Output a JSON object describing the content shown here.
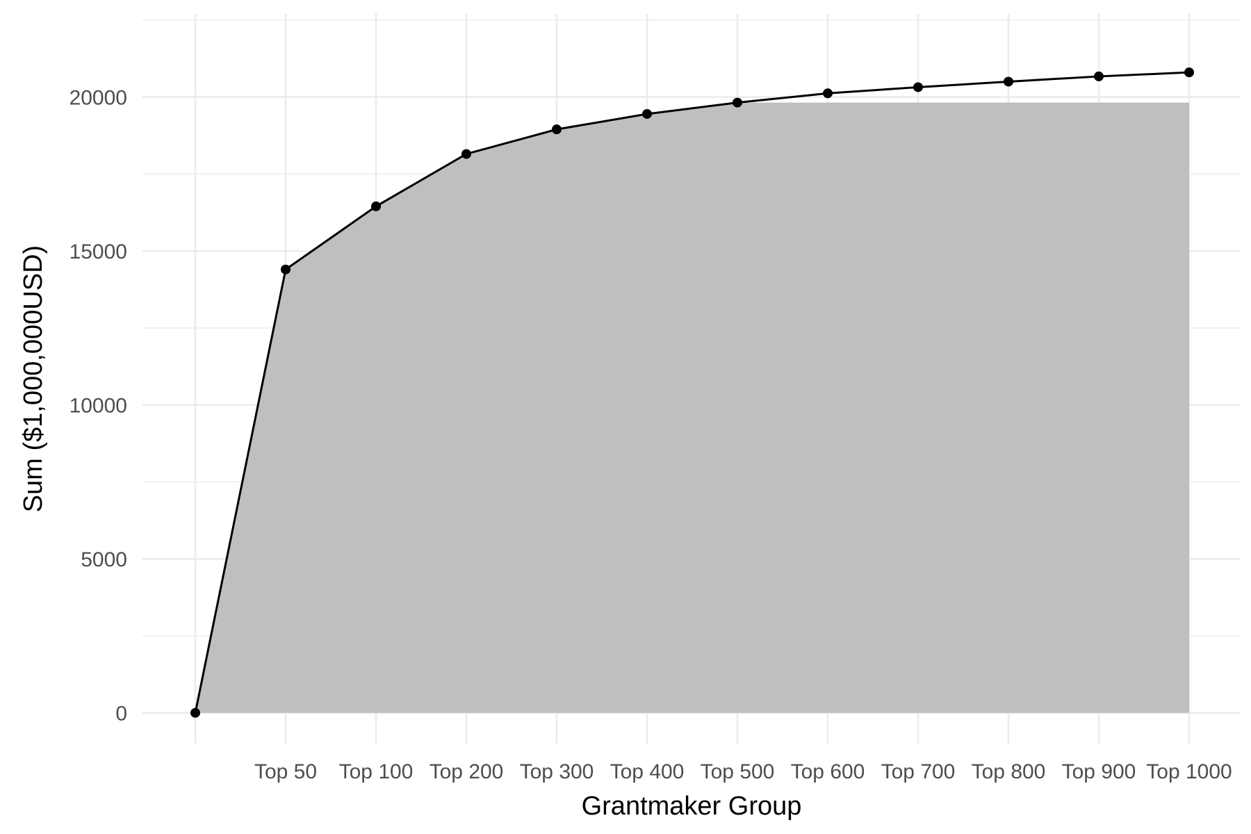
{
  "chart_data": {
    "type": "area",
    "title": "",
    "xlabel": "Grantmaker Group",
    "ylabel": "Sum ($1,000,000USD)",
    "categories": [
      "",
      "Top 50",
      "Top 100",
      "Top 200",
      "Top 300",
      "Top 400",
      "Top 500",
      "Top 600",
      "Top 700",
      "Top 800",
      "Top 900",
      "Top 1000"
    ],
    "values": [
      0,
      14400,
      16450,
      18150,
      18950,
      19450,
      19820,
      20120,
      20320,
      20500,
      20670,
      20800
    ],
    "area_values": [
      0,
      14400,
      16450,
      18150,
      18950,
      19450,
      19820,
      19820,
      19820,
      19820,
      19820,
      19820
    ],
    "ylim": [
      -1000,
      22700
    ],
    "yticks": [
      0,
      5000,
      10000,
      15000,
      20000
    ],
    "ytick_labels": [
      "0",
      "5000",
      "10000",
      "15000",
      "20000"
    ],
    "grid": true,
    "legend": "none",
    "colors": {
      "area": "#bfbfbf",
      "line": "#000000",
      "point": "#000000",
      "grid": "#ebebeb"
    }
  }
}
